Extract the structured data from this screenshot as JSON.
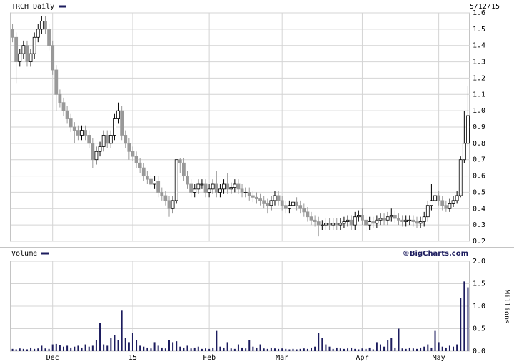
{
  "chart_data": [
    {
      "type": "candlestick",
      "title": "TRCH Daily",
      "date": "5/12/15",
      "open": [
        1.5,
        1.45,
        1.3,
        1.35,
        1.4,
        1.3,
        1.35,
        1.45,
        1.5,
        1.55,
        1.5,
        1.4,
        1.25,
        1.1,
        1.05,
        1.0,
        0.95,
        0.9,
        0.88,
        0.85,
        0.88,
        0.85,
        0.8,
        0.7,
        0.75,
        0.78,
        0.85,
        0.8,
        0.85,
        0.95,
        1.0,
        0.85,
        0.8,
        0.75,
        0.72,
        0.68,
        0.65,
        0.6,
        0.58,
        0.55,
        0.57,
        0.5,
        0.48,
        0.45,
        0.4,
        0.45,
        0.7,
        0.68,
        0.6,
        0.55,
        0.5,
        0.52,
        0.55,
        0.55,
        0.5,
        0.52,
        0.55,
        0.5,
        0.52,
        0.55,
        0.52,
        0.53,
        0.55,
        0.52,
        0.5,
        0.5,
        0.48,
        0.47,
        0.46,
        0.45,
        0.43,
        0.42,
        0.45,
        0.48,
        0.45,
        0.42,
        0.4,
        0.42,
        0.44,
        0.42,
        0.4,
        0.38,
        0.35,
        0.33,
        0.32,
        0.3,
        0.3,
        0.31,
        0.3,
        0.31,
        0.3,
        0.31,
        0.32,
        0.33,
        0.3,
        0.35,
        0.36,
        0.33,
        0.3,
        0.32,
        0.31,
        0.33,
        0.34,
        0.33,
        0.35,
        0.36,
        0.34,
        0.33,
        0.32,
        0.33,
        0.33,
        0.32,
        0.31,
        0.32,
        0.35,
        0.42,
        0.45,
        0.48,
        0.45,
        0.42,
        0.4,
        0.43,
        0.45,
        0.48,
        0.7,
        0.8
      ],
      "high": [
        1.53,
        1.48,
        1.38,
        1.43,
        1.43,
        1.38,
        1.48,
        1.53,
        1.58,
        1.58,
        1.53,
        1.43,
        1.28,
        1.13,
        1.08,
        1.03,
        0.98,
        0.93,
        0.91,
        0.91,
        0.91,
        0.88,
        0.83,
        0.78,
        0.81,
        0.88,
        0.88,
        0.88,
        0.98,
        1.05,
        1.03,
        0.88,
        0.83,
        0.78,
        0.75,
        0.71,
        0.68,
        0.63,
        0.61,
        0.6,
        0.6,
        0.53,
        0.51,
        0.48,
        0.48,
        0.7,
        0.71,
        0.71,
        0.63,
        0.58,
        0.55,
        0.58,
        0.58,
        0.58,
        0.55,
        0.58,
        0.63,
        0.55,
        0.58,
        0.62,
        0.56,
        0.58,
        0.58,
        0.55,
        0.53,
        0.53,
        0.51,
        0.5,
        0.49,
        0.48,
        0.46,
        0.48,
        0.51,
        0.51,
        0.48,
        0.45,
        0.45,
        0.47,
        0.47,
        0.45,
        0.43,
        0.41,
        0.38,
        0.36,
        0.35,
        0.33,
        0.34,
        0.34,
        0.34,
        0.34,
        0.34,
        0.35,
        0.36,
        0.36,
        0.38,
        0.39,
        0.4,
        0.36,
        0.35,
        0.35,
        0.36,
        0.37,
        0.37,
        0.38,
        0.4,
        0.39,
        0.37,
        0.36,
        0.36,
        0.36,
        0.36,
        0.35,
        0.35,
        0.38,
        0.45,
        0.55,
        0.51,
        0.51,
        0.48,
        0.45,
        0.46,
        0.48,
        0.51,
        0.72,
        1.0,
        1.15
      ],
      "low": [
        1.42,
        1.17,
        1.27,
        1.32,
        1.27,
        1.27,
        1.32,
        1.42,
        1.47,
        1.47,
        1.37,
        1.22,
        1.0,
        1.02,
        0.97,
        0.92,
        0.87,
        0.8,
        0.82,
        0.82,
        0.82,
        0.77,
        0.65,
        0.67,
        0.72,
        0.75,
        0.77,
        0.77,
        0.82,
        0.92,
        0.82,
        0.77,
        0.7,
        0.69,
        0.65,
        0.62,
        0.57,
        0.55,
        0.52,
        0.52,
        0.47,
        0.45,
        0.42,
        0.35,
        0.37,
        0.43,
        0.62,
        0.57,
        0.52,
        0.47,
        0.47,
        0.49,
        0.52,
        0.47,
        0.47,
        0.49,
        0.47,
        0.47,
        0.49,
        0.49,
        0.49,
        0.5,
        0.49,
        0.47,
        0.47,
        0.45,
        0.44,
        0.43,
        0.42,
        0.4,
        0.37,
        0.39,
        0.42,
        0.42,
        0.39,
        0.37,
        0.37,
        0.39,
        0.39,
        0.37,
        0.35,
        0.32,
        0.3,
        0.29,
        0.23,
        0.27,
        0.27,
        0.27,
        0.27,
        0.27,
        0.27,
        0.28,
        0.29,
        0.27,
        0.27,
        0.32,
        0.3,
        0.26,
        0.27,
        0.28,
        0.28,
        0.3,
        0.3,
        0.3,
        0.32,
        0.31,
        0.3,
        0.29,
        0.29,
        0.3,
        0.29,
        0.28,
        0.28,
        0.29,
        0.32,
        0.39,
        0.42,
        0.42,
        0.39,
        0.38,
        0.38,
        0.41,
        0.43,
        0.47,
        0.68,
        0.78
      ],
      "close": [
        1.45,
        1.3,
        1.35,
        1.4,
        1.3,
        1.35,
        1.45,
        1.5,
        1.55,
        1.5,
        1.4,
        1.25,
        1.1,
        1.05,
        1.0,
        0.95,
        0.9,
        0.88,
        0.85,
        0.88,
        0.85,
        0.8,
        0.7,
        0.75,
        0.78,
        0.85,
        0.8,
        0.85,
        0.95,
        1.0,
        0.85,
        0.8,
        0.75,
        0.72,
        0.68,
        0.65,
        0.6,
        0.58,
        0.55,
        0.57,
        0.5,
        0.48,
        0.45,
        0.4,
        0.45,
        0.7,
        0.68,
        0.6,
        0.55,
        0.5,
        0.52,
        0.55,
        0.55,
        0.5,
        0.52,
        0.55,
        0.5,
        0.52,
        0.55,
        0.52,
        0.53,
        0.55,
        0.52,
        0.5,
        0.5,
        0.48,
        0.47,
        0.46,
        0.45,
        0.43,
        0.42,
        0.45,
        0.48,
        0.45,
        0.42,
        0.4,
        0.42,
        0.44,
        0.42,
        0.4,
        0.38,
        0.35,
        0.33,
        0.32,
        0.3,
        0.3,
        0.31,
        0.3,
        0.31,
        0.3,
        0.31,
        0.32,
        0.33,
        0.3,
        0.35,
        0.36,
        0.33,
        0.3,
        0.32,
        0.31,
        0.33,
        0.34,
        0.33,
        0.35,
        0.36,
        0.34,
        0.33,
        0.32,
        0.33,
        0.33,
        0.32,
        0.31,
        0.32,
        0.35,
        0.42,
        0.45,
        0.48,
        0.45,
        0.42,
        0.4,
        0.43,
        0.45,
        0.48,
        0.7,
        0.8,
        0.97
      ],
      "color_up": "#ffffff",
      "color_down": "#999999",
      "color": "#1c1c5e",
      "ylim": [
        0.2,
        1.6
      ],
      "yticks": [
        0.2,
        0.3,
        0.4,
        0.5,
        0.6,
        0.7,
        0.8,
        0.9,
        {
          "value": 1,
          "label": "1.0"
        },
        1.1,
        1.2,
        1.3,
        1.4,
        1.5,
        1.6
      ],
      "grid": true
    },
    {
      "type": "bar",
      "title": "Volume",
      "credit": "©BigCharts.com",
      "ylabel": "Millions",
      "categories": [
        null,
        null,
        null,
        null,
        null,
        null,
        null,
        null,
        null,
        null,
        null,
        "Dec",
        null,
        null,
        null,
        null,
        null,
        null,
        null,
        null,
        null,
        null,
        null,
        null,
        null,
        null,
        null,
        null,
        null,
        null,
        null,
        null,
        null,
        "15",
        null,
        null,
        null,
        null,
        null,
        null,
        null,
        null,
        null,
        null,
        null,
        null,
        null,
        null,
        null,
        null,
        null,
        null,
        null,
        null,
        "Feb",
        null,
        null,
        null,
        null,
        null,
        null,
        null,
        null,
        null,
        null,
        null,
        null,
        null,
        null,
        null,
        null,
        null,
        null,
        null,
        "Mar",
        null,
        null,
        null,
        null,
        null,
        null,
        null,
        null,
        null,
        null,
        null,
        null,
        null,
        null,
        null,
        null,
        null,
        null,
        null,
        null,
        null,
        "Apr",
        null,
        null,
        null,
        null,
        null,
        null,
        null,
        null,
        null,
        null,
        null,
        null,
        null,
        null,
        null,
        null,
        null,
        null,
        null,
        null,
        "May",
        null,
        null,
        null,
        null,
        null,
        null,
        null,
        null
      ],
      "values": [
        0.05,
        0.04,
        0.06,
        0.05,
        0.04,
        0.08,
        0.05,
        0.06,
        0.12,
        0.06,
        0.05,
        0.15,
        0.16,
        0.14,
        0.1,
        0.12,
        0.08,
        0.1,
        0.12,
        0.08,
        0.15,
        0.1,
        0.12,
        0.25,
        0.62,
        0.15,
        0.12,
        0.3,
        0.35,
        0.25,
        0.9,
        0.3,
        0.2,
        0.4,
        0.25,
        0.12,
        0.1,
        0.08,
        0.06,
        0.2,
        0.12,
        0.08,
        0.06,
        0.25,
        0.2,
        0.22,
        0.1,
        0.08,
        0.12,
        0.06,
        0.08,
        0.1,
        0.05,
        0.06,
        0.05,
        0.08,
        0.45,
        0.1,
        0.08,
        0.2,
        0.06,
        0.05,
        0.15,
        0.08,
        0.06,
        0.25,
        0.1,
        0.08,
        0.15,
        0.06,
        0.05,
        0.08,
        0.06,
        0.05,
        0.06,
        0.05,
        0.04,
        0.05,
        0.04,
        0.05,
        0.06,
        0.05,
        0.08,
        0.1,
        0.4,
        0.3,
        0.15,
        0.1,
        0.05,
        0.08,
        0.06,
        0.05,
        0.06,
        0.08,
        0.05,
        0.04,
        0.06,
        0.05,
        0.08,
        0.04,
        0.2,
        0.15,
        0.1,
        0.25,
        0.3,
        0.08,
        0.5,
        0.06,
        0.05,
        0.08,
        0.06,
        0.05,
        0.08,
        0.1,
        0.15,
        0.08,
        0.45,
        0.2,
        0.1,
        0.08,
        0.12,
        0.1,
        0.15,
        1.18,
        1.55,
        1.42
      ],
      "color": "#1c1c5e",
      "ylim": [
        0,
        2
      ],
      "yticks": [
        {
          "value": 0,
          "label": "0.0"
        },
        0.5,
        {
          "value": 1,
          "label": "1.0"
        },
        1.5,
        {
          "value": 2,
          "label": "2.0"
        }
      ],
      "grid": true
    }
  ]
}
